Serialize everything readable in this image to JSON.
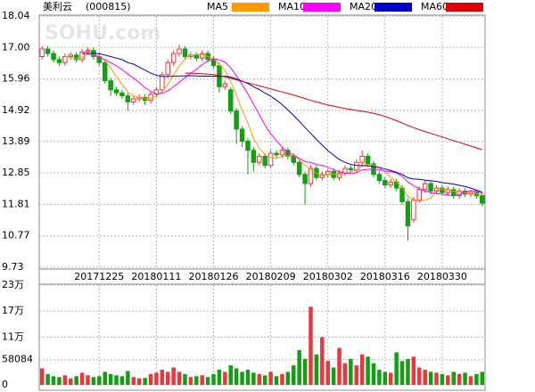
{
  "chart_data": {
    "type": "candlestick",
    "title": "美利云",
    "code": "(000815)",
    "watermark": "SOHU.com",
    "categories": [
      null,
      null,
      null,
      null,
      null,
      null,
      null,
      null,
      null,
      null,
      "20171225",
      null,
      null,
      null,
      null,
      null,
      null,
      null,
      null,
      null,
      "20180111",
      null,
      null,
      null,
      null,
      null,
      null,
      null,
      null,
      null,
      "20180126",
      null,
      null,
      null,
      null,
      null,
      null,
      null,
      null,
      null,
      "20180209",
      null,
      null,
      null,
      null,
      null,
      null,
      null,
      null,
      null,
      "20180302",
      null,
      null,
      null,
      null,
      null,
      null,
      null,
      null,
      null,
      "20180316",
      null,
      null,
      null,
      null,
      null,
      null,
      null,
      null,
      null,
      "20180330",
      null,
      null,
      null,
      null,
      null,
      null,
      null
    ],
    "open": [
      16.7,
      16.95,
      16.8,
      16.6,
      16.5,
      16.7,
      16.75,
      16.6,
      16.85,
      16.9,
      16.7,
      16.5,
      15.9,
      15.6,
      15.5,
      15.4,
      15.2,
      15.3,
      15.35,
      15.25,
      15.45,
      15.6,
      16.1,
      16.5,
      16.8,
      16.95,
      16.7,
      16.75,
      16.65,
      16.8,
      16.6,
      16.4,
      15.7,
      15.6,
      14.9,
      14.3,
      13.9,
      13.6,
      13.2,
      13.4,
      13.1,
      13.5,
      13.45,
      13.6,
      13.4,
      13.2,
      12.8,
      12.5,
      13.0,
      12.7,
      12.8,
      12.9,
      12.7,
      12.85,
      13.0,
      12.95,
      13.2,
      13.4,
      13.15,
      12.8,
      12.6,
      12.45,
      12.55,
      12.35,
      11.9,
      11.3,
      11.95,
      12.3,
      12.5,
      12.25,
      12.35,
      12.2,
      12.3,
      12.1,
      12.25,
      12.15,
      12.2,
      12.1
    ],
    "high": [
      17.05,
      17.05,
      16.9,
      16.7,
      16.8,
      16.85,
      16.85,
      16.95,
      17.0,
      17.0,
      16.8,
      16.6,
      16.0,
      15.7,
      15.6,
      15.5,
      15.4,
      15.45,
      15.45,
      15.55,
      15.7,
      16.2,
      16.6,
      16.9,
      17.1,
      17.05,
      16.85,
      16.85,
      16.9,
      16.9,
      16.7,
      16.5,
      15.9,
      15.7,
      15.0,
      14.4,
      14.0,
      13.7,
      13.5,
      13.5,
      13.6,
      13.6,
      13.7,
      13.7,
      13.5,
      13.3,
      12.9,
      13.1,
      13.1,
      12.9,
      13.0,
      13.0,
      12.95,
      13.1,
      13.1,
      13.3,
      13.6,
      13.5,
      13.25,
      12.9,
      12.7,
      12.65,
      12.65,
      12.45,
      12.0,
      12.05,
      12.4,
      12.6,
      12.6,
      12.45,
      12.45,
      12.4,
      12.4,
      12.35,
      12.35,
      12.3,
      12.3,
      12.2
    ],
    "low": [
      16.6,
      16.7,
      16.5,
      16.4,
      16.4,
      16.6,
      16.5,
      16.5,
      16.75,
      16.6,
      16.4,
      15.8,
      15.4,
      15.4,
      15.3,
      14.9,
      15.1,
      15.2,
      15.1,
      15.15,
      15.35,
      15.5,
      16.0,
      16.4,
      16.7,
      16.6,
      16.6,
      16.55,
      16.55,
      16.5,
      16.3,
      15.5,
      15.6,
      14.8,
      13.8,
      13.7,
      12.8,
      12.9,
      13.1,
      13.0,
      13.0,
      13.35,
      13.35,
      13.3,
      13.1,
      12.7,
      11.8,
      12.4,
      12.6,
      12.6,
      12.7,
      12.6,
      12.6,
      12.75,
      12.85,
      12.85,
      13.1,
      13.05,
      12.7,
      12.5,
      12.35,
      12.35,
      12.25,
      11.8,
      10.6,
      11.2,
      11.85,
      12.2,
      12.15,
      12.15,
      12.1,
      12.1,
      12.0,
      12.0,
      12.05,
      12.05,
      12.0,
      11.75
    ],
    "close": [
      16.95,
      16.8,
      16.6,
      16.5,
      16.7,
      16.75,
      16.6,
      16.85,
      16.9,
      16.7,
      16.5,
      15.9,
      15.6,
      15.5,
      15.4,
      15.2,
      15.3,
      15.35,
      15.25,
      15.45,
      15.6,
      16.1,
      16.5,
      16.8,
      16.95,
      16.7,
      16.75,
      16.65,
      16.8,
      16.6,
      16.4,
      15.7,
      15.8,
      14.9,
      14.3,
      13.9,
      13.6,
      13.2,
      13.4,
      13.1,
      13.5,
      13.45,
      13.6,
      13.4,
      13.2,
      12.8,
      12.5,
      13.0,
      12.7,
      12.8,
      12.9,
      12.7,
      12.85,
      13.0,
      12.95,
      13.2,
      13.4,
      13.15,
      12.8,
      12.6,
      12.45,
      12.55,
      12.35,
      11.9,
      11.1,
      11.95,
      12.3,
      12.5,
      12.25,
      12.35,
      12.2,
      12.3,
      12.1,
      12.25,
      12.15,
      12.2,
      12.1,
      11.85
    ],
    "up_color": "#e8383d",
    "down_color": "#12a012",
    "ylim": [
      9.73,
      18.04
    ],
    "yticks": [
      18.04,
      {
        "value": 17,
        "label": "17.00"
      },
      15.96,
      14.92,
      13.89,
      12.85,
      11.81,
      10.77,
      9.73
    ],
    "grid": true,
    "series": [
      {
        "name": "MA5",
        "color": "#ff9900",
        "values": [
          null,
          null,
          null,
          null,
          16.71,
          16.67,
          16.63,
          16.68,
          16.76,
          16.76,
          16.71,
          16.57,
          16.32,
          16.04,
          15.78,
          15.52,
          15.4,
          15.35,
          15.3,
          15.31,
          15.39,
          15.55,
          15.78,
          16.09,
          16.39,
          16.61,
          16.74,
          16.77,
          16.77,
          16.7,
          16.64,
          16.43,
          16.26,
          15.88,
          15.42,
          14.92,
          14.5,
          13.98,
          13.68,
          13.44,
          13.36,
          13.33,
          13.41,
          13.41,
          13.43,
          13.29,
          13.1,
          12.98,
          12.84,
          12.76,
          12.78,
          12.82,
          12.79,
          12.85,
          12.88,
          12.94,
          13.08,
          13.14,
          13.1,
          13.03,
          12.88,
          12.71,
          12.55,
          12.37,
          12.07,
          11.97,
          11.92,
          11.95,
          12.02,
          12.27,
          12.32,
          12.32,
          12.24,
          12.24,
          12.2,
          12.2,
          12.16,
          12.11
        ]
      },
      {
        "name": "MA10",
        "color": "#ff00ff",
        "values": [
          null,
          null,
          null,
          null,
          null,
          null,
          null,
          null,
          null,
          16.74,
          16.69,
          16.6,
          16.5,
          16.4,
          16.27,
          16.12,
          15.99,
          15.84,
          15.67,
          15.55,
          15.46,
          15.48,
          15.57,
          15.7,
          15.85,
          16.0,
          16.15,
          16.28,
          16.43,
          16.55,
          16.63,
          16.59,
          16.52,
          16.33,
          16.06,
          15.78,
          15.47,
          15.12,
          14.78,
          14.43,
          14.14,
          13.92,
          13.7,
          13.55,
          13.44,
          13.33,
          13.22,
          13.2,
          13.13,
          13.1,
          13.04,
          12.96,
          12.89,
          12.85,
          12.82,
          12.86,
          12.95,
          12.97,
          12.98,
          12.96,
          12.91,
          12.9,
          12.85,
          12.74,
          12.55,
          12.43,
          12.32,
          12.25,
          12.2,
          12.17,
          12.15,
          12.12,
          12.1,
          12.13,
          12.24,
          12.26,
          12.24,
          12.18
        ]
      },
      {
        "name": "MA20",
        "color": "#0000cc",
        "values": [
          null,
          null,
          null,
          null,
          null,
          null,
          null,
          16.8,
          16.8,
          16.8,
          16.8,
          16.75,
          16.7,
          16.65,
          16.6,
          16.5,
          16.45,
          16.35,
          16.25,
          16.15,
          16.08,
          16.04,
          16.04,
          16.05,
          16.06,
          16.06,
          16.07,
          16.06,
          16.05,
          16.05,
          16.05,
          16.04,
          16.05,
          16.02,
          15.96,
          15.89,
          15.81,
          15.7,
          15.61,
          15.49,
          15.39,
          15.26,
          15.11,
          14.94,
          14.75,
          14.56,
          14.35,
          14.16,
          13.96,
          13.77,
          13.59,
          13.44,
          13.3,
          13.2,
          13.13,
          13.1,
          13.09,
          13.09,
          13.06,
          13.03,
          12.98,
          12.93,
          12.87,
          12.8,
          12.69,
          12.65,
          12.64,
          12.61,
          12.59,
          12.57,
          12.53,
          12.51,
          12.48,
          12.44,
          12.4,
          12.35,
          12.28,
          12.22
        ]
      },
      {
        "name": "MA60",
        "color": "#dd0000",
        "values": [
          null,
          null,
          null,
          null,
          null,
          null,
          null,
          null,
          null,
          null,
          null,
          null,
          null,
          null,
          null,
          null,
          null,
          null,
          null,
          null,
          null,
          null,
          null,
          null,
          null,
          16.15,
          16.15,
          16.14,
          16.13,
          16.12,
          16.1,
          16.07,
          16.03,
          15.98,
          15.93,
          15.88,
          15.83,
          15.78,
          15.73,
          15.68,
          15.63,
          15.58,
          15.53,
          15.48,
          15.43,
          15.37,
          15.31,
          15.25,
          15.2,
          15.15,
          15.1,
          15.06,
          15.02,
          14.98,
          14.95,
          14.92,
          14.89,
          14.86,
          14.82,
          14.78,
          14.72,
          14.65,
          14.58,
          14.5,
          14.42,
          14.35,
          14.28,
          14.22,
          14.16,
          14.1,
          14.04,
          13.98,
          13.92,
          13.86,
          13.8,
          13.74,
          13.68,
          13.62
        ]
      }
    ],
    "volume": {
      "values": [
        38000,
        25000,
        20000,
        18000,
        22000,
        15000,
        20000,
        28000,
        22000,
        18000,
        20000,
        30000,
        25000,
        22000,
        20000,
        32000,
        18000,
        15000,
        16000,
        25000,
        28000,
        35000,
        30000,
        40000,
        30000,
        25000,
        18000,
        20000,
        22000,
        18000,
        25000,
        35000,
        30000,
        45000,
        38000,
        30000,
        35000,
        28000,
        25000,
        22000,
        30000,
        20000,
        25000,
        30000,
        45000,
        80000,
        60000,
        180000,
        70000,
        110000,
        55000,
        40000,
        85000,
        50000,
        60000,
        45000,
        70000,
        65000,
        50000,
        35000,
        30000,
        28000,
        75000,
        55000,
        60000,
        65000,
        40000,
        35000,
        30000,
        28000,
        25000,
        22000,
        30000,
        25000,
        28000,
        20000,
        25000,
        30000
      ],
      "ylim": [
        0,
        230000
      ],
      "yticks": [
        {
          "value": 230000,
          "label": "23万"
        },
        {
          "value": 170000,
          "label": "17万"
        },
        {
          "value": 110000,
          "label": "11万"
        },
        58084,
        0
      ]
    }
  }
}
